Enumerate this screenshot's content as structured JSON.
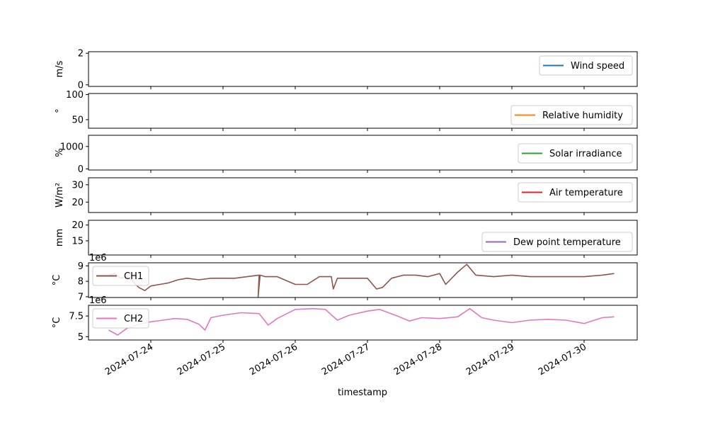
{
  "chart_data": [
    {
      "type": "line",
      "ylabel": "m/s",
      "ylim": [
        -0.1,
        2.1
      ],
      "yticks": [
        0,
        2
      ],
      "legend": {
        "location": "right",
        "entries": [
          {
            "name": "Wind speed",
            "color": "#1f77b4"
          }
        ]
      },
      "series": [
        {
          "name": "Wind speed",
          "color": "#1f77b4",
          "x": [],
          "y": []
        }
      ]
    },
    {
      "type": "line",
      "ylabel": "°",
      "ylim": [
        33,
        102
      ],
      "yticks": [
        50,
        100
      ],
      "legend": {
        "location": "lower right",
        "entries": [
          {
            "name": "Relative humidity",
            "color": "#ff7f0e"
          }
        ]
      },
      "series": [
        {
          "name": "Relative humidity",
          "color": "#ff7f0e",
          "x": [],
          "y": []
        }
      ]
    },
    {
      "type": "line",
      "ylabel": "%",
      "ylim": [
        -50,
        1500
      ],
      "yticks": [
        0,
        1000
      ],
      "legend": {
        "location": "lower right",
        "entries": [
          {
            "name": "Solar irradiance",
            "color": "#2ca02c"
          }
        ]
      },
      "series": [
        {
          "name": "Solar irradiance",
          "color": "#2ca02c",
          "x": [],
          "y": []
        }
      ]
    },
    {
      "type": "line",
      "ylabel": "W/m²",
      "ylim": [
        14,
        34
      ],
      "yticks": [
        20,
        30
      ],
      "legend": {
        "location": "right",
        "entries": [
          {
            "name": "Air temperature",
            "color": "#d62728"
          }
        ]
      },
      "series": [
        {
          "name": "Air temperature",
          "color": "#d62728",
          "x": [],
          "y": []
        }
      ]
    },
    {
      "type": "line",
      "ylabel": "mm",
      "ylim": [
        10.5,
        21.5
      ],
      "yticks": [
        15,
        20
      ],
      "legend": {
        "location": "lower right",
        "entries": [
          {
            "name": "Dew point temperature",
            "color": "#9467bd"
          }
        ]
      },
      "series": [
        {
          "name": "Dew point temperature",
          "color": "#9467bd",
          "x": [],
          "y": []
        }
      ]
    },
    {
      "type": "line",
      "ylabel": "°C",
      "offset_label": "1e6",
      "ylim": [
        6.95,
        9.2
      ],
      "yticks": [
        7,
        8,
        9
      ],
      "legend": {
        "location": "upper left",
        "entries": [
          {
            "name": "CH1",
            "color": "#8c564b"
          }
        ]
      },
      "series": [
        {
          "name": "CH1",
          "color": "#8c564b",
          "x": [
            "2024-07-23 10:00",
            "2024-07-23 12:00",
            "2024-07-23 14:00",
            "2024-07-23 16:00",
            "2024-07-23 18:00",
            "2024-07-23 20:00",
            "2024-07-23 22:00",
            "2024-07-24 00:00",
            "2024-07-24 03:00",
            "2024-07-24 06:00",
            "2024-07-24 09:00",
            "2024-07-24 12:00",
            "2024-07-24 16:00",
            "2024-07-24 20:00",
            "2024-07-25 00:00",
            "2024-07-25 04:00",
            "2024-07-25 08:00",
            "2024-07-25 12:00",
            "2024-07-25 11:40",
            "2024-07-25 12:20",
            "2024-07-25 14:00",
            "2024-07-25 18:00",
            "2024-07-26 00:00",
            "2024-07-26 04:00",
            "2024-07-26 08:00",
            "2024-07-26 12:00",
            "2024-07-26 12:40",
            "2024-07-26 14:00",
            "2024-07-26 18:00",
            "2024-07-27 00:00",
            "2024-07-27 03:00",
            "2024-07-27 05:00",
            "2024-07-27 08:00",
            "2024-07-27 12:00",
            "2024-07-27 16:00",
            "2024-07-27 20:00",
            "2024-07-28 00:00",
            "2024-07-28 02:00",
            "2024-07-28 06:00",
            "2024-07-28 09:00",
            "2024-07-28 12:00",
            "2024-07-28 18:00",
            "2024-07-29 00:00",
            "2024-07-29 06:00",
            "2024-07-29 12:00",
            "2024-07-29 18:00",
            "2024-07-30 00:00",
            "2024-07-30 06:00",
            "2024-07-30 10:00"
          ],
          "y": [
            8.4,
            8.5,
            8.2,
            8.3,
            8.0,
            7.6,
            7.4,
            7.7,
            7.8,
            7.9,
            8.1,
            8.2,
            8.1,
            8.2,
            8.2,
            8.2,
            8.3,
            8.4,
            7.0,
            8.4,
            8.3,
            8.3,
            7.8,
            7.8,
            8.3,
            8.3,
            7.5,
            8.2,
            8.2,
            8.2,
            7.5,
            7.6,
            8.2,
            8.4,
            8.4,
            8.3,
            8.5,
            7.8,
            8.6,
            9.1,
            8.4,
            8.3,
            8.4,
            8.3,
            8.3,
            8.3,
            8.3,
            8.4,
            8.5
          ]
        }
      ]
    },
    {
      "type": "line",
      "ylabel": "°C",
      "offset_label": "1e6",
      "ylim": [
        4.6,
        8.8
      ],
      "yticks": [
        5.0,
        7.5
      ],
      "legend": {
        "location": "upper left",
        "entries": [
          {
            "name": "CH2",
            "color": "#e377c2"
          }
        ]
      },
      "series": [
        {
          "name": "CH2",
          "color": "#e377c2",
          "x": [
            "2024-07-23 10:00",
            "2024-07-23 13:00",
            "2024-07-23 16:00",
            "2024-07-23 20:00",
            "2024-07-24 00:00",
            "2024-07-24 04:00",
            "2024-07-24 08:00",
            "2024-07-24 12:00",
            "2024-07-24 16:00",
            "2024-07-24 18:00",
            "2024-07-24 20:00",
            "2024-07-25 00:00",
            "2024-07-25 06:00",
            "2024-07-25 12:00",
            "2024-07-25 15:00",
            "2024-07-25 18:00",
            "2024-07-26 00:00",
            "2024-07-26 06:00",
            "2024-07-26 10:00",
            "2024-07-26 14:00",
            "2024-07-26 18:00",
            "2024-07-27 00:00",
            "2024-07-27 04:00",
            "2024-07-27 10:00",
            "2024-07-27 14:00",
            "2024-07-27 18:00",
            "2024-07-28 00:00",
            "2024-07-28 06:00",
            "2024-07-28 10:00",
            "2024-07-28 14:00",
            "2024-07-28 18:00",
            "2024-07-29 00:00",
            "2024-07-29 06:00",
            "2024-07-29 12:00",
            "2024-07-29 18:00",
            "2024-07-30 00:00",
            "2024-07-30 06:00",
            "2024-07-30 10:00"
          ],
          "y": [
            5.8,
            5.2,
            6.0,
            6.5,
            6.8,
            7.0,
            7.2,
            7.1,
            6.5,
            5.8,
            7.3,
            7.6,
            7.9,
            7.8,
            6.4,
            7.2,
            8.3,
            8.4,
            8.3,
            7.0,
            7.6,
            8.1,
            8.3,
            7.5,
            6.9,
            7.3,
            7.2,
            7.4,
            8.4,
            7.3,
            7.0,
            6.7,
            7.0,
            7.1,
            7.0,
            6.6,
            7.3,
            7.4
          ]
        }
      ]
    }
  ],
  "x_axis": {
    "label": "timestamp",
    "xlim": [
      "2023-07-23 00:00",
      "2024-07-30 23:00"
    ],
    "ticks": [
      "2024-07-24",
      "2024-07-25",
      "2024-07-26",
      "2024-07-27",
      "2024-07-28",
      "2024-07-29",
      "2024-07-30"
    ]
  }
}
